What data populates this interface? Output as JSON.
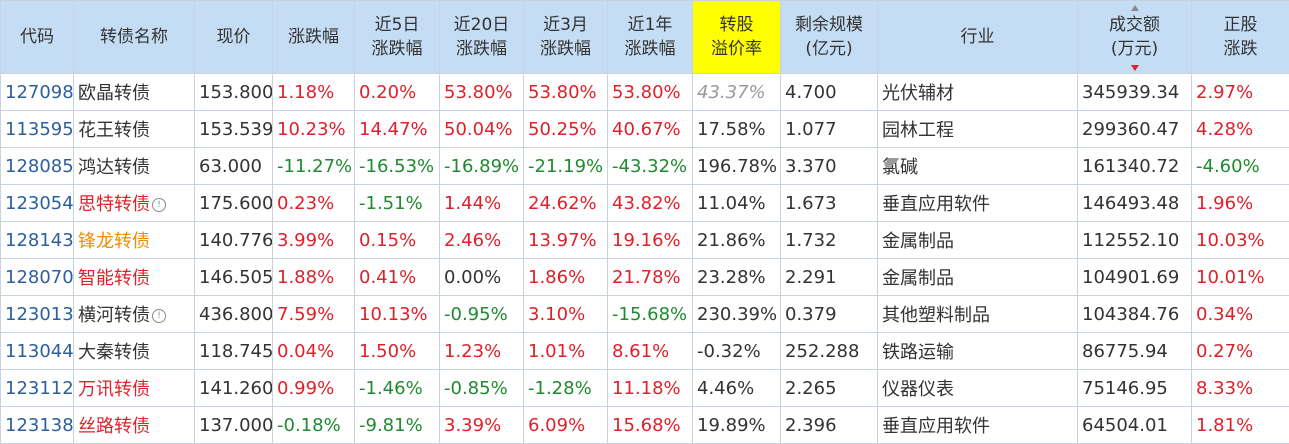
{
  "headers": {
    "code": "代码",
    "name": "转债名称",
    "price": "现价",
    "chg": "涨跌幅",
    "chg5d_1": "近5日",
    "chg5d_2": "涨跌幅",
    "chg20d_1": "近20日",
    "chg20d_2": "涨跌幅",
    "chg3m_1": "近3月",
    "chg3m_2": "涨跌幅",
    "chg1y_1": "近1年",
    "chg1y_2": "涨跌幅",
    "premium_1": "转股",
    "premium_2": "溢价率",
    "remain_1": "剩余规模",
    "remain_2": "(亿元)",
    "industry": "行业",
    "volume_1": "成交额",
    "volume_2": "(万元)",
    "stock_chg_1": "正股",
    "stock_chg_2": "涨跌"
  },
  "rows": [
    {
      "code": "127098",
      "name": "欧晶转债",
      "price": "153.800",
      "chg": "1.18%",
      "chg5d": "0.20%",
      "chg20d": "53.80%",
      "chg3m": "53.80%",
      "chg1y": "53.80%",
      "premium": "43.37%",
      "remain": "4.700",
      "industry": "光伏辅材",
      "volume": "345939.34",
      "stock_chg": "2.97%"
    },
    {
      "code": "113595",
      "name": "花王转债",
      "price": "153.539",
      "chg": "10.23%",
      "chg5d": "14.47%",
      "chg20d": "50.04%",
      "chg3m": "50.25%",
      "chg1y": "40.67%",
      "premium": "17.58%",
      "remain": "1.077",
      "industry": "园林工程",
      "volume": "299360.47",
      "stock_chg": "4.28%"
    },
    {
      "code": "128085",
      "name": "鸿达转债",
      "price": "63.000",
      "chg": "-11.27%",
      "chg5d": "-16.53%",
      "chg20d": "-16.89%",
      "chg3m": "-21.19%",
      "chg1y": "-43.32%",
      "premium": "196.78%",
      "remain": "3.370",
      "industry": "氯碱",
      "volume": "161340.72",
      "stock_chg": "-4.60%"
    },
    {
      "code": "123054",
      "name": "思特转债",
      "price": "175.600",
      "chg": "0.23%",
      "chg5d": "-1.51%",
      "chg20d": "1.44%",
      "chg3m": "24.62%",
      "chg1y": "43.82%",
      "premium": "11.04%",
      "remain": "1.673",
      "industry": "垂直应用软件",
      "volume": "146493.48",
      "stock_chg": "1.96%"
    },
    {
      "code": "128143",
      "name": "锋龙转债",
      "price": "140.776",
      "chg": "3.99%",
      "chg5d": "0.15%",
      "chg20d": "2.46%",
      "chg3m": "13.97%",
      "chg1y": "19.16%",
      "premium": "21.86%",
      "remain": "1.732",
      "industry": "金属制品",
      "volume": "112552.10",
      "stock_chg": "10.03%"
    },
    {
      "code": "128070",
      "name": "智能转债",
      "price": "146.505",
      "chg": "1.88%",
      "chg5d": "0.41%",
      "chg20d": "0.00%",
      "chg3m": "1.86%",
      "chg1y": "21.78%",
      "premium": "23.28%",
      "remain": "2.291",
      "industry": "金属制品",
      "volume": "104901.69",
      "stock_chg": "10.01%"
    },
    {
      "code": "123013",
      "name": "横河转债",
      "price": "436.800",
      "chg": "7.59%",
      "chg5d": "10.13%",
      "chg20d": "-0.95%",
      "chg3m": "3.10%",
      "chg1y": "-15.68%",
      "premium": "230.39%",
      "remain": "0.379",
      "industry": "其他塑料制品",
      "volume": "104384.76",
      "stock_chg": "0.34%"
    },
    {
      "code": "113044",
      "name": "大秦转债",
      "price": "118.745",
      "chg": "0.04%",
      "chg5d": "1.50%",
      "chg20d": "1.23%",
      "chg3m": "1.01%",
      "chg1y": "8.61%",
      "premium": "-0.32%",
      "remain": "252.288",
      "industry": "铁路运输",
      "volume": "86775.94",
      "stock_chg": "0.27%"
    },
    {
      "code": "123112",
      "name": "万讯转债",
      "price": "141.260",
      "chg": "0.99%",
      "chg5d": "-1.46%",
      "chg20d": "-0.85%",
      "chg3m": "-1.28%",
      "chg1y": "11.18%",
      "premium": "4.46%",
      "remain": "2.265",
      "industry": "仪器仪表",
      "volume": "75146.95",
      "stock_chg": "8.33%"
    },
    {
      "code": "123138",
      "name": "丝路转债",
      "price": "137.000",
      "chg": "-0.18%",
      "chg5d": "-9.81%",
      "chg20d": "3.39%",
      "chg3m": "6.09%",
      "chg1y": "15.68%",
      "premium": "19.89%",
      "remain": "2.396",
      "industry": "垂直应用软件",
      "volume": "64504.01",
      "stock_chg": "1.81%"
    }
  ],
  "info_icon": "!",
  "colors": {
    "up": "#e0202a",
    "down": "#1f8a2f",
    "header_bg": "#c5ddf4",
    "highlight": "#ffff00",
    "code": "#2c5f9e",
    "orange_name": "#f08c00"
  }
}
